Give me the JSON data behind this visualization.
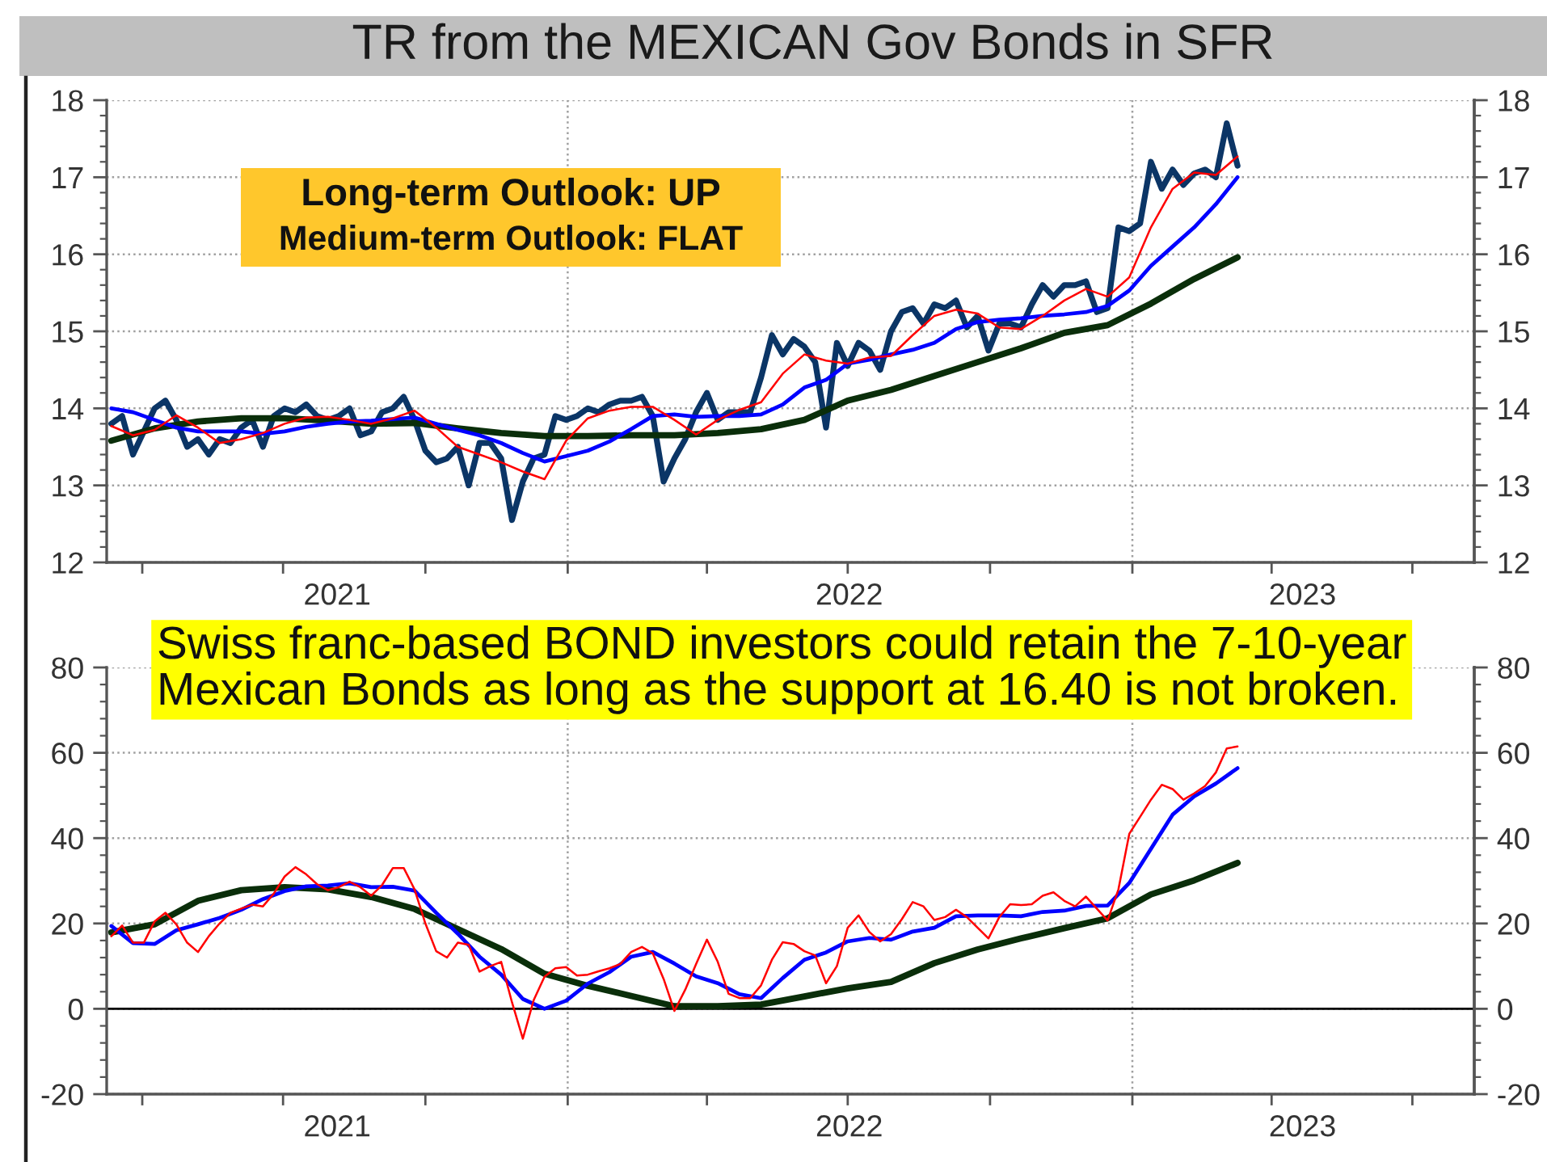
{
  "chart_data": [
    {
      "type": "line",
      "title": "TR from the MEXICAN Gov Bonds in SFR",
      "annotations": [
        "Long-term Outlook: UP",
        "Medium-term Outlook: FLAT"
      ],
      "x": [
        "2021-03-12",
        "2021-03-19",
        "2021-03-26",
        "2021-04-02",
        "2021-04-09",
        "2021-04-16",
        "2021-04-23",
        "2021-04-30",
        "2021-05-07",
        "2021-05-14",
        "2021-05-21",
        "2021-05-28",
        "2021-06-04",
        "2021-06-11",
        "2021-06-18",
        "2021-06-25",
        "2021-07-02",
        "2021-07-09",
        "2021-07-16",
        "2021-07-23",
        "2021-07-30",
        "2021-08-06",
        "2021-08-13",
        "2021-08-20",
        "2021-08-27",
        "2021-09-03",
        "2021-09-10",
        "2021-09-17",
        "2021-09-24",
        "2021-10-01",
        "2021-10-08",
        "2021-10-15",
        "2021-10-22",
        "2021-10-29",
        "2021-11-05",
        "2021-11-12",
        "2021-11-19",
        "2021-11-26",
        "2021-12-03",
        "2021-12-10",
        "2021-12-17",
        "2021-12-24",
        "2021-12-31",
        "2022-01-07",
        "2022-01-14",
        "2022-01-21",
        "2022-01-28",
        "2022-02-04",
        "2022-02-11",
        "2022-02-18",
        "2022-02-25",
        "2022-03-04",
        "2022-03-11",
        "2022-03-18",
        "2022-03-25",
        "2022-04-01",
        "2022-04-08",
        "2022-04-15",
        "2022-04-22",
        "2022-04-29",
        "2022-05-06",
        "2022-05-13",
        "2022-05-20",
        "2022-05-27",
        "2022-06-03",
        "2022-06-10",
        "2022-06-17",
        "2022-06-24",
        "2022-07-01",
        "2022-07-08",
        "2022-07-15",
        "2022-07-22",
        "2022-07-29",
        "2022-08-05",
        "2022-08-12",
        "2022-08-19",
        "2022-08-26",
        "2022-09-02",
        "2022-09-09",
        "2022-09-16",
        "2022-09-23",
        "2022-09-30",
        "2022-10-07",
        "2022-10-14",
        "2022-10-21",
        "2022-10-28",
        "2022-11-04",
        "2022-11-11",
        "2022-11-18",
        "2022-11-25",
        "2022-12-02",
        "2022-12-09",
        "2022-12-16",
        "2022-12-23",
        "2022-12-30",
        "2023-01-06",
        "2023-01-13",
        "2023-01-20",
        "2023-01-27",
        "2023-02-03",
        "2023-02-10",
        "2023-02-17",
        "2023-02-24",
        "2023-03-03",
        "2023-03-10"
      ],
      "xlim": [
        "2021-03-09",
        "2023-08-10"
      ],
      "xticks": [
        {
          "value": "2021-04-01",
          "label": null
        },
        {
          "value": "2021-07-01",
          "label": null
        },
        {
          "value": "2021-10-01",
          "label": null
        },
        {
          "value": "2022-01-01",
          "label": null
        },
        {
          "value": "2022-04-01",
          "label": null
        },
        {
          "value": "2022-07-01",
          "label": null
        },
        {
          "value": "2022-10-01",
          "label": null
        },
        {
          "value": "2023-01-01",
          "label": null
        },
        {
          "value": "2023-04-01",
          "label": null
        },
        {
          "value": "2023-07-01",
          "label": null
        },
        {
          "value": "2021-08-05",
          "label": "2021"
        },
        {
          "value": "2022-07-02",
          "label": "2022"
        },
        {
          "value": "2023-04-21",
          "label": "2023"
        }
      ],
      "ylim": [
        12,
        18
      ],
      "yticks": [
        12,
        13,
        14,
        15,
        16,
        17,
        18
      ],
      "y2lim": [
        12,
        18
      ],
      "y2ticks": [
        12,
        13,
        14,
        15,
        16,
        17,
        18
      ],
      "grid": "y",
      "ref_lines": [
        {
          "axis": "x",
          "value": "2022-01-01",
          "color": "#a0a0a0",
          "line_style": "dotted"
        },
        {
          "axis": "x",
          "value": "2023-01-01",
          "color": "#a0a0a0",
          "line_style": "dotted"
        }
      ],
      "series": [
        {
          "color": "#0b3566",
          "values": [
            13.8,
            13.9,
            13.4,
            13.7,
            14.0,
            14.1,
            13.85,
            13.5,
            13.6,
            13.4,
            13.6,
            13.55,
            13.75,
            13.85,
            13.5,
            13.9,
            14.0,
            13.95,
            14.05,
            13.9,
            13.85,
            13.9,
            14.0,
            13.65,
            13.7,
            13.95,
            14.0,
            14.15,
            13.85,
            13.45,
            13.3,
            13.35,
            13.5,
            13.0,
            13.55,
            13.55,
            13.35,
            12.55,
            13.05,
            13.35,
            13.4,
            13.9,
            13.85,
            13.9,
            14.0,
            13.95,
            14.05,
            14.1,
            14.1,
            14.15,
            13.9,
            13.05,
            13.35,
            13.6,
            13.95,
            14.2,
            13.85,
            13.95,
            13.95,
            13.95,
            14.4,
            14.95,
            14.7,
            14.9,
            14.8,
            14.6,
            13.75,
            14.85,
            14.55,
            14.85,
            14.75,
            14.5,
            15.0,
            15.25,
            15.3,
            15.1,
            15.35,
            15.3,
            15.4,
            15.05,
            15.2,
            14.75,
            15.1,
            15.1,
            15.05,
            15.35,
            15.6,
            15.45,
            15.6,
            15.6,
            15.65,
            15.25,
            15.3,
            16.35,
            16.3,
            16.4,
            17.2,
            16.85,
            17.1,
            16.9,
            17.05,
            17.1,
            17.0,
            17.7,
            17.15
          ]
        },
        {
          "color": "#0a2e0a",
          "x": [
            "2021-03-12",
            "2021-04-09",
            "2021-05-07",
            "2021-06-04",
            "2021-07-02",
            "2021-07-30",
            "2021-08-27",
            "2021-09-24",
            "2021-10-22",
            "2021-11-19",
            "2021-12-17",
            "2022-01-14",
            "2022-02-11",
            "2022-03-11",
            "2022-04-08",
            "2022-05-06",
            "2022-06-03",
            "2022-07-01",
            "2022-07-29",
            "2022-08-26",
            "2022-09-23",
            "2022-10-21",
            "2022-11-18",
            "2022-12-16",
            "2023-01-13",
            "2023-02-10",
            "2023-03-10"
          ],
          "values": [
            13.58,
            13.74,
            13.83,
            13.87,
            13.87,
            13.84,
            13.8,
            13.81,
            13.74,
            13.68,
            13.64,
            13.64,
            13.65,
            13.65,
            13.68,
            13.73,
            13.85,
            14.1,
            14.24,
            14.42,
            14.6,
            14.78,
            14.98,
            15.08,
            15.36,
            15.68,
            15.96
          ]
        },
        {
          "color": "#0000ff",
          "x": [
            "2021-03-12",
            "2021-03-26",
            "2021-04-09",
            "2021-04-23",
            "2021-05-07",
            "2021-05-21",
            "2021-06-04",
            "2021-06-18",
            "2021-07-02",
            "2021-07-16",
            "2021-07-30",
            "2021-08-13",
            "2021-08-27",
            "2021-09-10",
            "2021-09-24",
            "2021-10-08",
            "2021-10-22",
            "2021-11-05",
            "2021-11-19",
            "2021-12-03",
            "2021-12-17",
            "2021-12-31",
            "2022-01-14",
            "2022-01-28",
            "2022-02-11",
            "2022-02-25",
            "2022-03-11",
            "2022-03-25",
            "2022-04-08",
            "2022-04-22",
            "2022-05-06",
            "2022-05-20",
            "2022-06-03",
            "2022-06-17",
            "2022-07-01",
            "2022-07-15",
            "2022-07-29",
            "2022-08-12",
            "2022-08-26",
            "2022-09-09",
            "2022-09-23",
            "2022-10-07",
            "2022-10-21",
            "2022-11-04",
            "2022-11-18",
            "2022-12-02",
            "2022-12-16",
            "2022-12-30",
            "2023-01-13",
            "2023-01-27",
            "2023-02-10",
            "2023-02-24",
            "2023-03-10"
          ],
          "values": [
            14.0,
            13.95,
            13.85,
            13.75,
            13.7,
            13.7,
            13.7,
            13.67,
            13.7,
            13.76,
            13.8,
            13.83,
            13.84,
            13.86,
            13.88,
            13.8,
            13.72,
            13.65,
            13.55,
            13.42,
            13.31,
            13.38,
            13.45,
            13.57,
            13.73,
            13.9,
            13.92,
            13.89,
            13.9,
            13.9,
            13.92,
            14.05,
            14.27,
            14.37,
            14.58,
            14.63,
            14.7,
            14.76,
            14.85,
            15.03,
            15.12,
            15.15,
            15.17,
            15.2,
            15.22,
            15.25,
            15.33,
            15.53,
            15.85,
            16.1,
            16.35,
            16.65,
            17.0
          ]
        },
        {
          "color": "#ff0000",
          "x": [
            "2021-03-12",
            "2021-03-26",
            "2021-04-09",
            "2021-04-23",
            "2021-05-07",
            "2021-05-21",
            "2021-06-04",
            "2021-06-18",
            "2021-07-02",
            "2021-07-16",
            "2021-07-30",
            "2021-08-13",
            "2021-08-27",
            "2021-09-10",
            "2021-09-24",
            "2021-10-08",
            "2021-10-22",
            "2021-11-05",
            "2021-11-19",
            "2021-12-03",
            "2021-12-17",
            "2021-12-31",
            "2022-01-14",
            "2022-01-28",
            "2022-02-11",
            "2022-02-25",
            "2022-03-11",
            "2022-03-25",
            "2022-04-08",
            "2022-04-22",
            "2022-05-06",
            "2022-05-20",
            "2022-06-03",
            "2022-06-17",
            "2022-07-01",
            "2022-07-15",
            "2022-07-29",
            "2022-08-12",
            "2022-08-26",
            "2022-09-09",
            "2022-09-23",
            "2022-10-07",
            "2022-10-21",
            "2022-11-04",
            "2022-11-18",
            "2022-12-02",
            "2022-12-16",
            "2022-12-30",
            "2023-01-13",
            "2023-01-27",
            "2023-02-10",
            "2023-02-24",
            "2023-03-10"
          ],
          "values": [
            13.77,
            13.65,
            13.72,
            13.91,
            13.75,
            13.55,
            13.6,
            13.68,
            13.8,
            13.88,
            13.89,
            13.85,
            13.8,
            13.87,
            13.97,
            13.75,
            13.5,
            13.4,
            13.3,
            13.18,
            13.08,
            13.58,
            13.87,
            13.97,
            14.02,
            14.02,
            13.85,
            13.66,
            13.85,
            13.98,
            14.08,
            14.45,
            14.7,
            14.62,
            14.58,
            14.66,
            14.68,
            14.95,
            15.2,
            15.28,
            15.23,
            15.05,
            15.03,
            15.2,
            15.4,
            15.55,
            15.45,
            15.7,
            16.35,
            16.85,
            17.06,
            17.03,
            17.27
          ]
        }
      ]
    },
    {
      "type": "line",
      "annotations": [
        "Swiss franc-based BOND investors could retain the 7-10-year Mexican Bonds as long as the support at 16.40 is not broken."
      ],
      "x": [
        "2021-03-12",
        "2021-03-19",
        "2021-03-26",
        "2021-04-02",
        "2021-04-09",
        "2021-04-16",
        "2021-04-23",
        "2021-04-30",
        "2021-05-07",
        "2021-05-14",
        "2021-05-21",
        "2021-05-28",
        "2021-06-04",
        "2021-06-11",
        "2021-06-18",
        "2021-06-25",
        "2021-07-02",
        "2021-07-09",
        "2021-07-16",
        "2021-07-23",
        "2021-07-30",
        "2021-08-06",
        "2021-08-13",
        "2021-08-20",
        "2021-08-27",
        "2021-09-03",
        "2021-09-10",
        "2021-09-17",
        "2021-09-24",
        "2021-10-01",
        "2021-10-08",
        "2021-10-15",
        "2021-10-22",
        "2021-10-29",
        "2021-11-05",
        "2021-11-12",
        "2021-11-19",
        "2021-11-26",
        "2021-12-03",
        "2021-12-10",
        "2021-12-17",
        "2021-12-24",
        "2021-12-31",
        "2022-01-07",
        "2022-01-14",
        "2022-01-21",
        "2022-01-28",
        "2022-02-04",
        "2022-02-11",
        "2022-02-18",
        "2022-02-25",
        "2022-03-04",
        "2022-03-11",
        "2022-03-18",
        "2022-03-25",
        "2022-04-01",
        "2022-04-08",
        "2022-04-15",
        "2022-04-22",
        "2022-04-29",
        "2022-05-06",
        "2022-05-13",
        "2022-05-20",
        "2022-05-27",
        "2022-06-03",
        "2022-06-10",
        "2022-06-17",
        "2022-06-24",
        "2022-07-01",
        "2022-07-08",
        "2022-07-15",
        "2022-07-22",
        "2022-07-29",
        "2022-08-05",
        "2022-08-12",
        "2022-08-19",
        "2022-08-26",
        "2022-09-02",
        "2022-09-09",
        "2022-09-16",
        "2022-09-23",
        "2022-09-30",
        "2022-10-07",
        "2022-10-14",
        "2022-10-21",
        "2022-10-28",
        "2022-11-04",
        "2022-11-11",
        "2022-11-18",
        "2022-11-25",
        "2022-12-02",
        "2022-12-09",
        "2022-12-16",
        "2022-12-23",
        "2022-12-30",
        "2023-01-06",
        "2023-01-13",
        "2023-01-20",
        "2023-01-27",
        "2023-02-03",
        "2023-02-10",
        "2023-02-17",
        "2023-02-24",
        "2023-03-03",
        "2023-03-10"
      ],
      "xlim": [
        "2021-03-09",
        "2023-08-10"
      ],
      "xticks": [
        {
          "value": "2021-04-01",
          "label": null
        },
        {
          "value": "2021-07-01",
          "label": null
        },
        {
          "value": "2021-10-01",
          "label": null
        },
        {
          "value": "2022-01-01",
          "label": null
        },
        {
          "value": "2022-04-01",
          "label": null
        },
        {
          "value": "2022-07-01",
          "label": null
        },
        {
          "value": "2022-10-01",
          "label": null
        },
        {
          "value": "2023-01-01",
          "label": null
        },
        {
          "value": "2023-04-01",
          "label": null
        },
        {
          "value": "2023-07-01",
          "label": null
        },
        {
          "value": "2021-08-05",
          "label": "2021"
        },
        {
          "value": "2022-07-02",
          "label": "2022"
        },
        {
          "value": "2023-04-21",
          "label": "2023"
        }
      ],
      "ylim": [
        -20,
        80
      ],
      "yticks": [
        -20,
        0,
        20,
        40,
        60,
        80
      ],
      "y2lim": [
        -20,
        80
      ],
      "y2ticks": [
        -20,
        0,
        20,
        40,
        60,
        80
      ],
      "grid": "y",
      "ref_lines": [
        {
          "axis": "x",
          "value": "2022-01-01",
          "color": "#a0a0a0",
          "line_style": "dotted"
        },
        {
          "axis": "x",
          "value": "2023-01-01",
          "color": "#a0a0a0",
          "line_style": "dotted"
        },
        {
          "axis": "y",
          "value": 0,
          "color": "#000000",
          "line_style": "solid"
        }
      ],
      "series": [
        {
          "color": "#0a2e0a",
          "x": [
            "2021-03-12",
            "2021-04-09",
            "2021-05-07",
            "2021-06-04",
            "2021-07-02",
            "2021-07-30",
            "2021-08-27",
            "2021-09-24",
            "2021-10-22",
            "2021-11-19",
            "2021-12-17",
            "2022-01-14",
            "2022-02-11",
            "2022-03-11",
            "2022-04-08",
            "2022-05-06",
            "2022-06-03",
            "2022-07-01",
            "2022-07-29",
            "2022-08-26",
            "2022-09-23",
            "2022-10-21",
            "2022-11-18",
            "2022-12-16",
            "2023-01-13",
            "2023-02-10",
            "2023-03-10"
          ],
          "values": [
            17.9,
            19.8,
            25.3,
            27.8,
            28.5,
            28,
            26.2,
            23.4,
            18.7,
            14,
            8.2,
            5.4,
            3,
            0.6,
            0.6,
            1.0,
            2.9,
            4.8,
            6.3,
            10.7,
            13.9,
            16.5,
            18.9,
            21.2,
            26.8,
            30.1,
            34.2
          ]
        },
        {
          "color": "#0000ff",
          "x": [
            "2021-03-12",
            "2021-03-26",
            "2021-04-09",
            "2021-04-23",
            "2021-05-07",
            "2021-05-21",
            "2021-06-04",
            "2021-06-18",
            "2021-07-02",
            "2021-07-16",
            "2021-07-30",
            "2021-08-13",
            "2021-08-27",
            "2021-09-10",
            "2021-09-24",
            "2021-10-08",
            "2021-10-22",
            "2021-11-05",
            "2021-11-19",
            "2021-12-03",
            "2021-12-17",
            "2021-12-31",
            "2022-01-14",
            "2022-01-28",
            "2022-02-11",
            "2022-02-25",
            "2022-03-11",
            "2022-03-25",
            "2022-04-08",
            "2022-04-22",
            "2022-05-06",
            "2022-05-20",
            "2022-06-03",
            "2022-06-17",
            "2022-07-01",
            "2022-07-15",
            "2022-07-29",
            "2022-08-12",
            "2022-08-26",
            "2022-09-09",
            "2022-09-23",
            "2022-10-07",
            "2022-10-21",
            "2022-11-04",
            "2022-11-18",
            "2022-12-02",
            "2022-12-16",
            "2022-12-30",
            "2023-01-13",
            "2023-01-27",
            "2023-02-10",
            "2023-02-24",
            "2023-03-10"
          ],
          "values": [
            19.4,
            15.4,
            15.2,
            18.4,
            19.8,
            21.3,
            23.2,
            25.7,
            27.6,
            28.7,
            28.9,
            29.4,
            28.5,
            28.6,
            27.7,
            22.5,
            17.6,
            12.2,
            8,
            2.3,
            0,
            1.9,
            5.9,
            8.6,
            12.2,
            13.3,
            10.6,
            7.6,
            6,
            3.4,
            2.5,
            7.2,
            11.5,
            13.2,
            15.8,
            16.6,
            16.2,
            18.1,
            19,
            21.7,
            21.9,
            21.9,
            21.7,
            22.7,
            23,
            24.1,
            24.2,
            29.5,
            37.5,
            45.5,
            49.8,
            52.8,
            56.4
          ]
        },
        {
          "color": "#ff0000",
          "values": [
            17,
            19.5,
            15.5,
            15.5,
            20.5,
            22.5,
            19.8,
            15.5,
            13.3,
            17,
            20,
            22.5,
            23.5,
            24.4,
            24,
            27,
            31,
            33.2,
            31.5,
            29.2,
            27.8,
            28.5,
            29.8,
            28.5,
            26.5,
            29,
            33,
            33,
            28,
            20,
            13.5,
            12,
            15.5,
            15,
            8.7,
            10,
            11,
            1.5,
            -7,
            2,
            7.5,
            9.5,
            9.8,
            7.8,
            8,
            8.8,
            9.5,
            10.5,
            13.3,
            14.5,
            13,
            7,
            -0.5,
            4.5,
            10.5,
            16.2,
            11,
            3.5,
            2.5,
            2.5,
            5.5,
            11.5,
            15.6,
            15.2,
            13.5,
            12.5,
            6,
            10,
            19,
            21.9,
            18,
            15.8,
            17.5,
            21,
            25,
            24,
            20.8,
            21.5,
            23.2,
            21.5,
            19,
            16.5,
            21.5,
            24.5,
            24.3,
            24.5,
            26.5,
            27.3,
            25.3,
            24,
            26.3,
            23.5,
            20.7,
            28,
            41,
            45,
            49,
            52.5,
            51.5,
            49,
            50.5,
            52.2,
            55.4,
            61,
            61.5
          ]
        }
      ]
    }
  ]
}
